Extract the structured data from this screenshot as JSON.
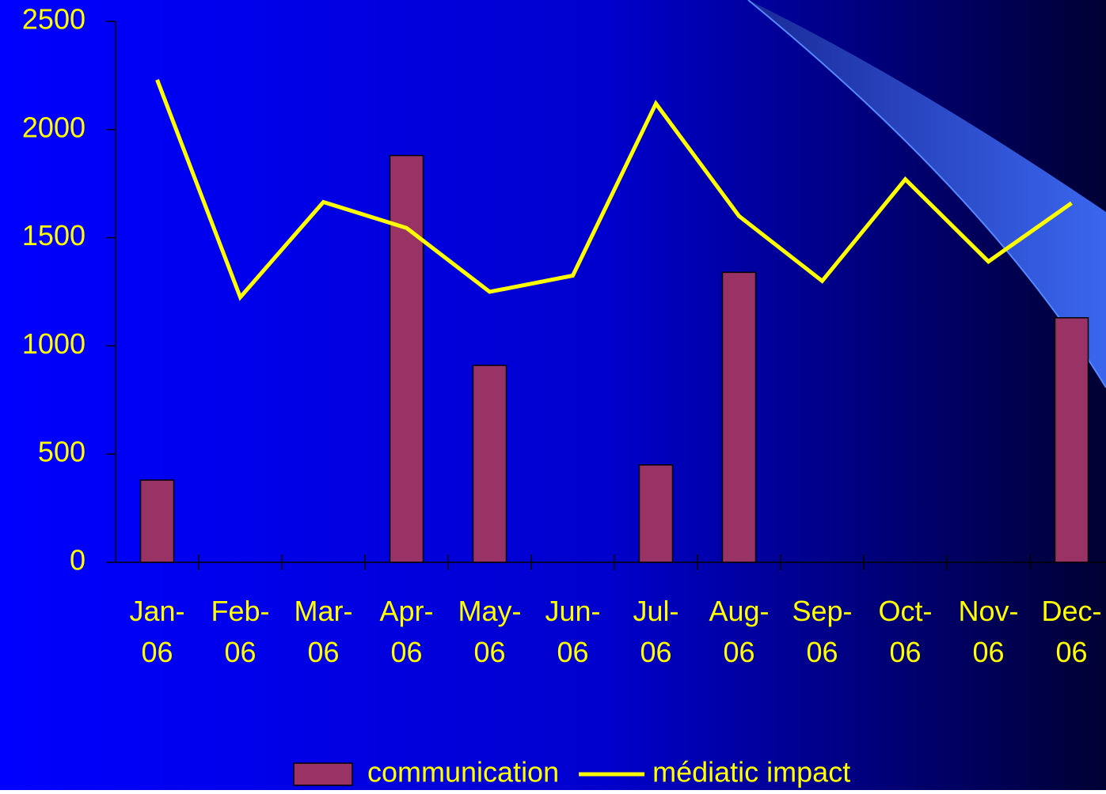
{
  "chart_data": {
    "type": "bar",
    "categories": [
      "Jan-06",
      "Feb-06",
      "Mar-06",
      "Apr-06",
      "May-06",
      "Jun-06",
      "Jul-06",
      "Aug-06",
      "Sep-06",
      "Oct-06",
      "Nov-06",
      "Dec-06"
    ],
    "series": [
      {
        "name": "communication",
        "type": "bar",
        "color": "#993366",
        "values": [
          380,
          null,
          null,
          1880,
          910,
          null,
          450,
          1340,
          null,
          null,
          null,
          1130
        ]
      },
      {
        "name": "médiatic impact",
        "type": "line",
        "color": "#ffff00",
        "values": [
          2230,
          1225,
          1665,
          1545,
          1250,
          1325,
          2120,
          1600,
          1300,
          1770,
          1390,
          1660
        ]
      }
    ],
    "ylim": [
      0,
      2500
    ],
    "yticks": [
      0,
      500,
      1000,
      1500,
      2000,
      2500
    ],
    "grid": false,
    "legend": "bottom"
  }
}
